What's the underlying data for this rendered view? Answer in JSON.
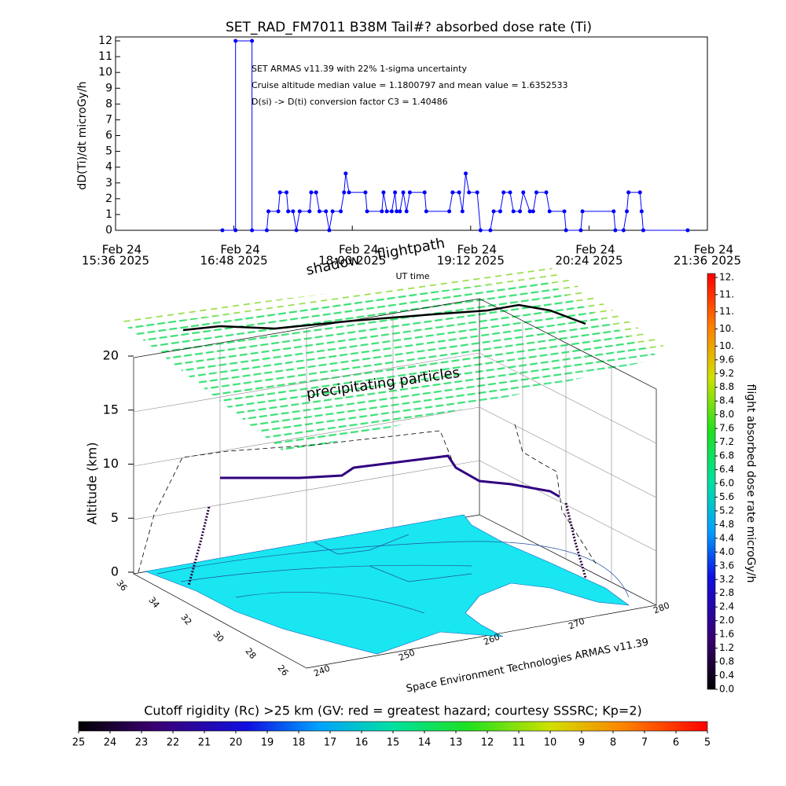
{
  "chart_data": [
    {
      "type": "line",
      "title": "SET_RAD_FM7011  B38M Tail#? absorbed dose rate (Ti)",
      "y_label": "dD(Ti)/dt microGy/h",
      "x_label": "UT time",
      "annotations": [
        "SET ARMAS v11.39 with 22% 1-sigma uncertainty",
        "Cruise altitude median value = 1.1800797 and mean value = 1.6352533",
        "D(si) -> D(ti) conversion factor C3 = 1.40486"
      ],
      "xlim": [
        "2025-02-24T15:36",
        "2025-02-24T21:36"
      ],
      "xticks": [
        {
          "value": "2025-02-24T15:36",
          "label": [
            "Feb 24",
            "15:36 2025"
          ]
        },
        {
          "value": "2025-02-24T16:48",
          "label": [
            "Feb 24",
            "16:48 2025"
          ]
        },
        {
          "value": "2025-02-24T18:00",
          "label": [
            "Feb 24",
            "18:00 2025"
          ]
        },
        {
          "value": "2025-02-24T19:12",
          "label": [
            "Feb 24",
            "19:12 2025"
          ]
        },
        {
          "value": "2025-02-24T20:24",
          "label": [
            "Feb 24",
            "20:24 2025"
          ]
        },
        {
          "value": "2025-02-24T21:36",
          "label": [
            "Feb 24",
            "21:36 2025"
          ]
        }
      ],
      "ylim": [
        0,
        12
      ],
      "yticks": [
        0,
        1,
        2,
        3,
        4,
        5,
        6,
        7,
        8,
        9,
        10,
        11,
        12
      ],
      "series": [
        {
          "color": "#0000ff",
          "x": [
            "2025-02-24T16:41",
            "2025-02-24T16:49",
            "2025-02-24T16:49",
            "2025-02-24T16:59",
            "2025-02-24T16:59",
            "2025-02-24T17:08",
            "2025-02-24T17:09",
            "2025-02-24T17:15",
            "2025-02-24T17:16",
            "2025-02-24T17:20",
            "2025-02-24T17:21",
            "2025-02-24T17:24",
            "2025-02-24T17:26",
            "2025-02-24T17:28",
            "2025-02-24T17:34",
            "2025-02-24T17:35",
            "2025-02-24T17:38",
            "2025-02-24T17:40",
            "2025-02-24T17:44",
            "2025-02-24T17:46",
            "2025-02-24T17:48",
            "2025-02-24T17:53",
            "2025-02-24T17:55",
            "2025-02-24T17:56",
            "2025-02-24T17:58",
            "2025-02-24T18:08",
            "2025-02-24T18:09",
            "2025-02-24T18:18",
            "2025-02-24T18:19",
            "2025-02-24T18:21",
            "2025-02-24T18:24",
            "2025-02-24T18:26",
            "2025-02-24T18:27",
            "2025-02-24T18:29",
            "2025-02-24T18:31",
            "2025-02-24T18:33",
            "2025-02-24T18:35",
            "2025-02-24T18:44",
            "2025-02-24T18:45",
            "2025-02-24T18:59",
            "2025-02-24T19:01",
            "2025-02-24T19:05",
            "2025-02-24T19:07",
            "2025-02-24T19:09",
            "2025-02-24T19:11",
            "2025-02-24T19:16",
            "2025-02-24T19:18",
            "2025-02-24T19:24",
            "2025-02-24T19:26",
            "2025-02-24T19:30",
            "2025-02-24T19:32",
            "2025-02-24T19:36",
            "2025-02-24T19:38",
            "2025-02-24T19:42",
            "2025-02-24T19:44",
            "2025-02-24T19:48",
            "2025-02-24T19:50",
            "2025-02-24T19:52",
            "2025-02-24T19:58",
            "2025-02-24T20:00",
            "2025-02-24T20:09",
            "2025-02-24T20:10",
            "2025-02-24T20:19",
            "2025-02-24T20:20",
            "2025-02-24T20:39",
            "2025-02-24T20:40",
            "2025-02-24T20:45",
            "2025-02-24T20:47",
            "2025-02-24T20:48",
            "2025-02-24T20:55",
            "2025-02-24T20:56",
            "2025-02-24T20:57",
            "2025-02-24T21:24"
          ],
          "values": [
            0,
            0,
            12,
            12,
            0,
            0,
            1.2,
            1.2,
            2.4,
            2.4,
            1.2,
            1.2,
            0,
            1.2,
            1.2,
            2.4,
            2.4,
            1.2,
            1.2,
            0,
            1.2,
            1.2,
            2.4,
            3.6,
            2.4,
            2.4,
            1.2,
            1.2,
            2.4,
            1.2,
            1.2,
            2.4,
            1.2,
            1.2,
            2.4,
            1.2,
            2.4,
            2.4,
            1.2,
            1.2,
            2.4,
            2.4,
            1.2,
            3.6,
            2.4,
            2.4,
            0,
            0,
            1.2,
            1.2,
            2.4,
            2.4,
            1.2,
            1.2,
            2.4,
            1.2,
            1.2,
            2.4,
            2.4,
            1.2,
            1.2,
            0,
            0,
            1.2,
            1.2,
            0,
            0,
            1.2,
            2.4,
            2.4,
            1.2,
            0,
            0
          ]
        }
      ]
    },
    {
      "type": "surface3d",
      "z_label": "Altitude (km)",
      "zlim": [
        0,
        20
      ],
      "zticks": [
        0,
        5,
        10,
        15,
        20
      ],
      "lat_ticks": [
        36,
        34,
        32,
        30,
        28,
        26
      ],
      "lon_ticks": [
        240,
        250,
        260,
        270,
        280
      ],
      "annotations": [
        "shadow",
        "flightpath",
        "precipitating particles"
      ],
      "credit": "Space Environment Technologies ARMAS v11.39"
    },
    {
      "type": "colorbar",
      "orientation": "vertical",
      "label": "flight absorbed dose rate microGy/h",
      "ylim": [
        0,
        12
      ],
      "yticks": [
        {
          "value": 0,
          "label": "0.0"
        },
        0.4,
        0.8,
        1.2,
        1.6,
        {
          "value": 2,
          "label": "2.0"
        },
        2.4,
        2.8,
        3.2,
        3.6,
        {
          "value": 4,
          "label": "4.0"
        },
        4.4,
        4.8,
        5.2,
        5.6,
        {
          "value": 6,
          "label": "6.0"
        },
        6.4,
        6.8,
        7.2,
        7.6,
        {
          "value": 8,
          "label": "8.0"
        },
        8.4,
        8.8,
        9.2,
        9.6,
        {
          "value": 10,
          "label": "10."
        },
        {
          "value": 10.5,
          "label": "10."
        },
        {
          "value": 11,
          "label": "11."
        },
        {
          "value": 11.5,
          "label": "11."
        },
        {
          "value": 12,
          "label": "12."
        }
      ]
    },
    {
      "type": "colorbar",
      "orientation": "horizontal",
      "title": "Cutoff rigidity (Rc) >25 km (GV: red = greatest hazard; courtesy SSSRC; Kp=2)",
      "xlim": [
        25,
        5
      ],
      "xticks": [
        25,
        24,
        23,
        22,
        21,
        20,
        19,
        18,
        17,
        16,
        15,
        14,
        13,
        12,
        11,
        10,
        9,
        8,
        7,
        6,
        5
      ]
    }
  ]
}
